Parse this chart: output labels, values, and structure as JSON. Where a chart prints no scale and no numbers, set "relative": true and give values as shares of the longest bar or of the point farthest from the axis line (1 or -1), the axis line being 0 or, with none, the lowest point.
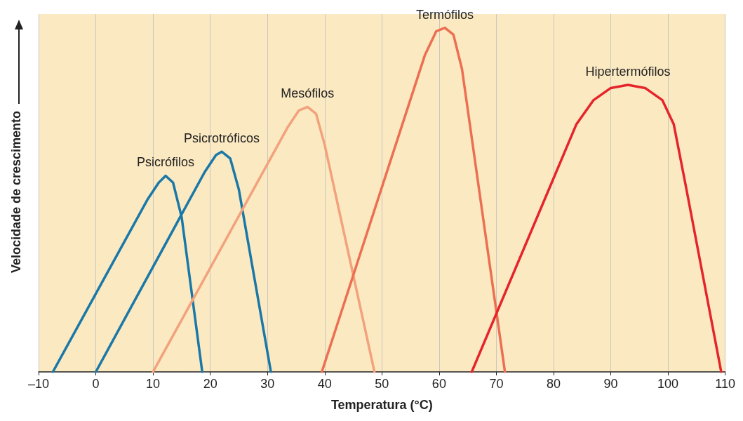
{
  "chart_data": {
    "type": "line",
    "xlabel": "Temperatura (°C)",
    "ylabel": "Velocidade de crescimento",
    "relative": true,
    "grid": "x",
    "legend": false,
    "marker": "none",
    "line_style": "solid",
    "xlim": [
      -10,
      110
    ],
    "xticks": [
      {
        "value": -10,
        "label": "–10"
      },
      0,
      10,
      20,
      30,
      40,
      50,
      60,
      70,
      80,
      90,
      100,
      110
    ],
    "series": [
      {
        "name": "Psicrófilos",
        "color": "#1a78a8",
        "x": [
          -7.5,
          9,
          11,
          12.2,
          13.5,
          15,
          18.6
        ],
        "values": [
          0,
          0.5,
          0.55,
          0.57,
          0.55,
          0.45,
          0
        ]
      },
      {
        "name": "Psicrotróficos",
        "color": "#1a78a8",
        "x": [
          0,
          19,
          21,
          22,
          23.5,
          25,
          30.6
        ],
        "values": [
          0,
          0.58,
          0.63,
          0.64,
          0.62,
          0.53,
          0
        ]
      },
      {
        "name": "Mesófilos",
        "color": "#f2a27c",
        "x": [
          10,
          33.5,
          35.5,
          37,
          38.5,
          40,
          48.7
        ],
        "values": [
          0,
          0.71,
          0.76,
          0.77,
          0.75,
          0.66,
          0
        ]
      },
      {
        "name": "Termófilos",
        "color": "#ec6f52",
        "x": [
          39.5,
          57.5,
          59.5,
          61,
          62.5,
          64,
          71.5
        ],
        "values": [
          0,
          0.92,
          0.99,
          1,
          0.98,
          0.88,
          0
        ]
      },
      {
        "name": "Hipertermófilos",
        "color": "#e5242b",
        "x": [
          65.7,
          84,
          87,
          90,
          93,
          96,
          99,
          101,
          103,
          109.3
        ],
        "values": [
          0,
          0.72,
          0.79,
          0.825,
          0.834,
          0.825,
          0.79,
          0.72,
          0.55,
          0
        ]
      }
    ]
  }
}
